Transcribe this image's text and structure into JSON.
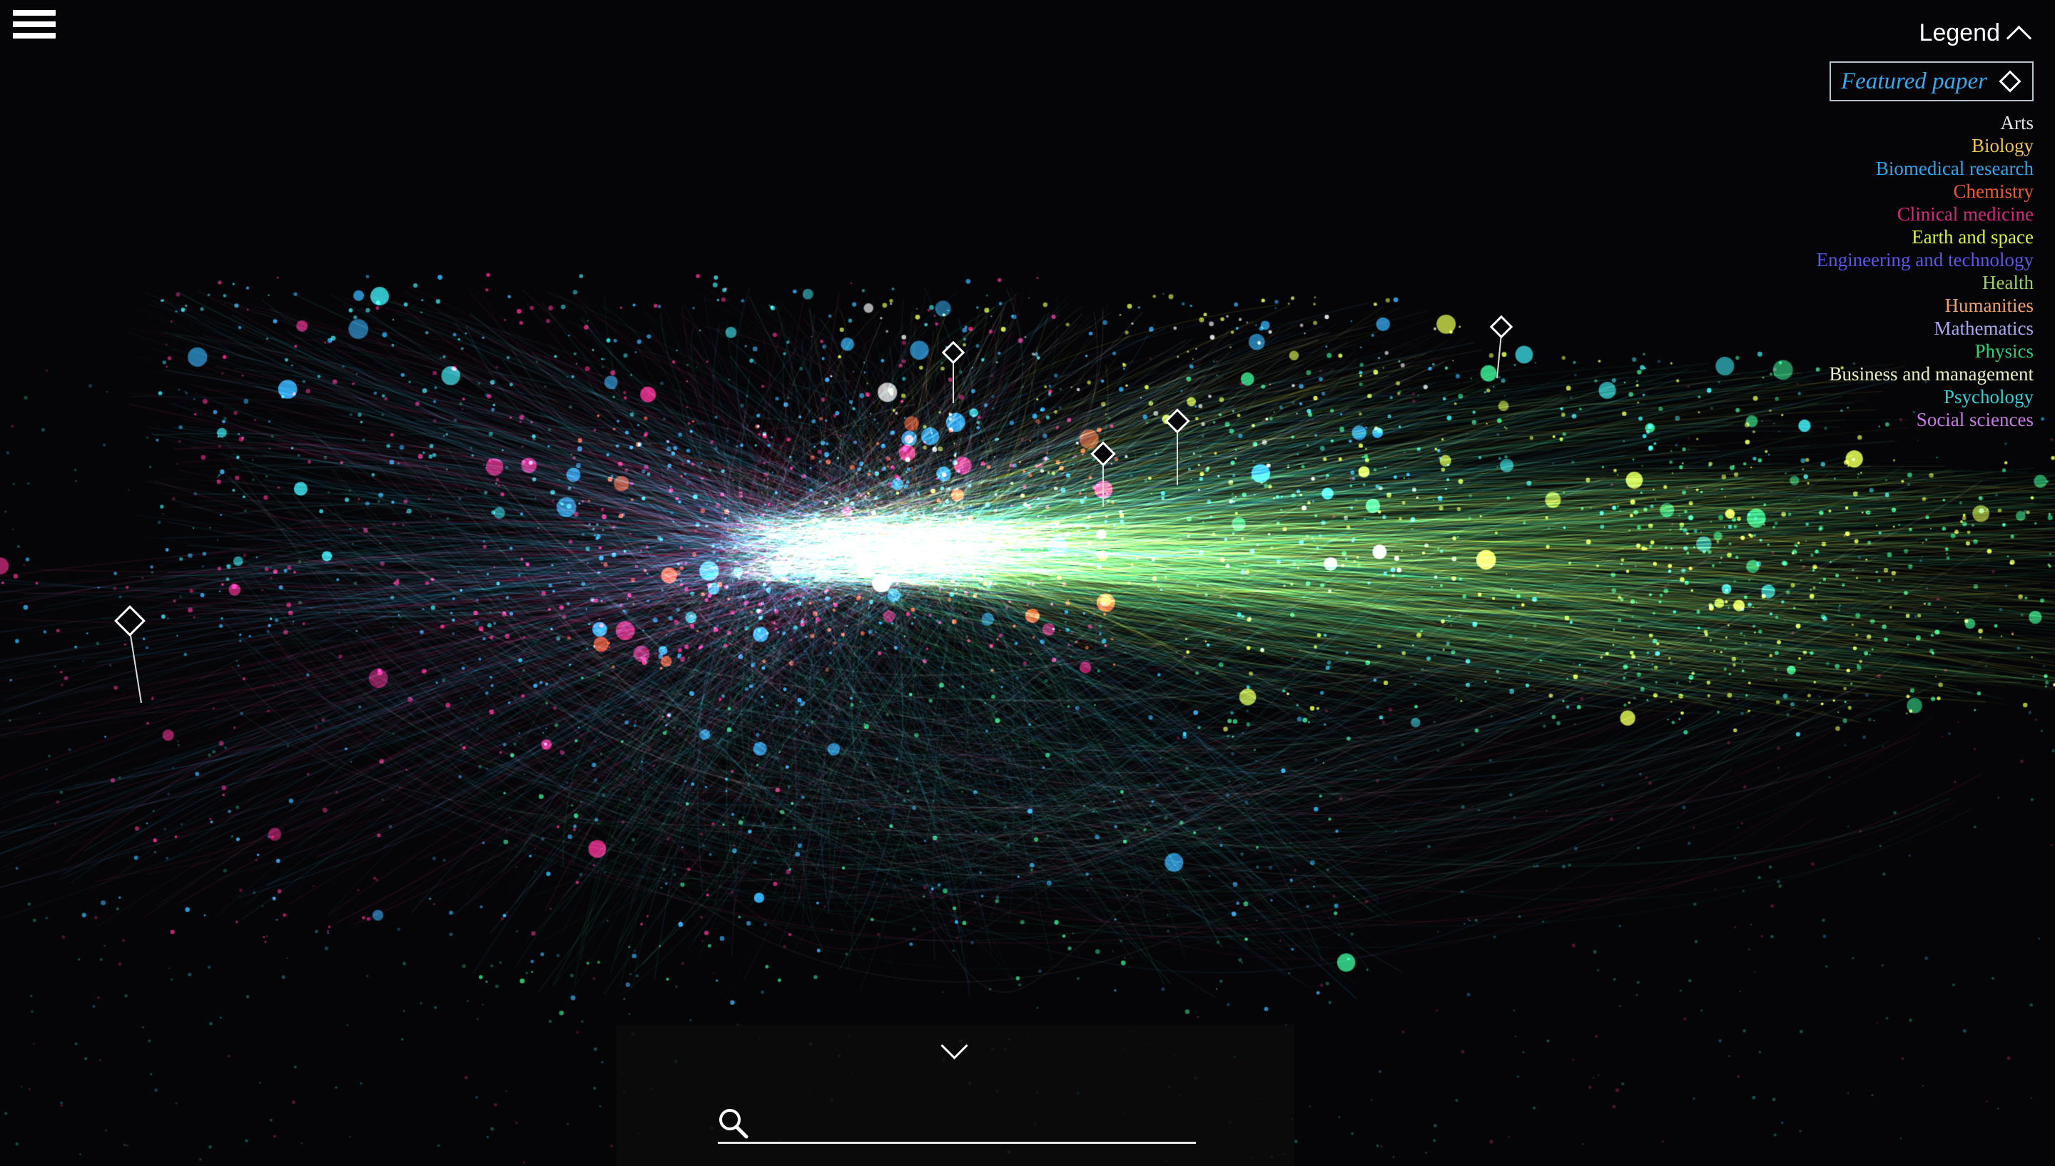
{
  "menu": {
    "icon": "hamburger-icon"
  },
  "legend": {
    "title": "Legend",
    "toggle_icon": "caret-up-icon",
    "featured_label": "Featured paper",
    "featured_icon": "diamond-icon",
    "featured_color": "#3aa7ee",
    "items": [
      {
        "label": "Arts",
        "color": "#e6e6e6"
      },
      {
        "label": "Biology",
        "color": "#f2c14e"
      },
      {
        "label": "Biomedical research",
        "color": "#2fa6ea"
      },
      {
        "label": "Chemistry",
        "color": "#ee5a2f"
      },
      {
        "label": "Clinical medicine",
        "color": "#d6277e"
      },
      {
        "label": "Earth and space",
        "color": "#d9f04a"
      },
      {
        "label": "Engineering and technology",
        "color": "#5b57e8"
      },
      {
        "label": "Health",
        "color": "#9fcf5e"
      },
      {
        "label": "Humanities",
        "color": "#f2a06a"
      },
      {
        "label": "Mathematics",
        "color": "#a9a6f0"
      },
      {
        "label": "Physics",
        "color": "#2fcf7e"
      },
      {
        "label": "Business and management",
        "color": "#e7f0c0"
      },
      {
        "label": "Psychology",
        "color": "#35d0d8"
      },
      {
        "label": "Social sciences",
        "color": "#c77be0"
      }
    ]
  },
  "search": {
    "icon": "search-icon",
    "placeholder": "",
    "value": "",
    "toggle_icon": "chevron-down-icon"
  },
  "network_colors": {
    "background": "#050507",
    "biomedical": "#2fa6ea",
    "clinical": "#d6277e",
    "chemistry": "#ee5a2f",
    "physics": "#2fcf7e",
    "earth": "#d9f04a",
    "psychology": "#35d0d8",
    "arts": "#e6e6e6"
  }
}
